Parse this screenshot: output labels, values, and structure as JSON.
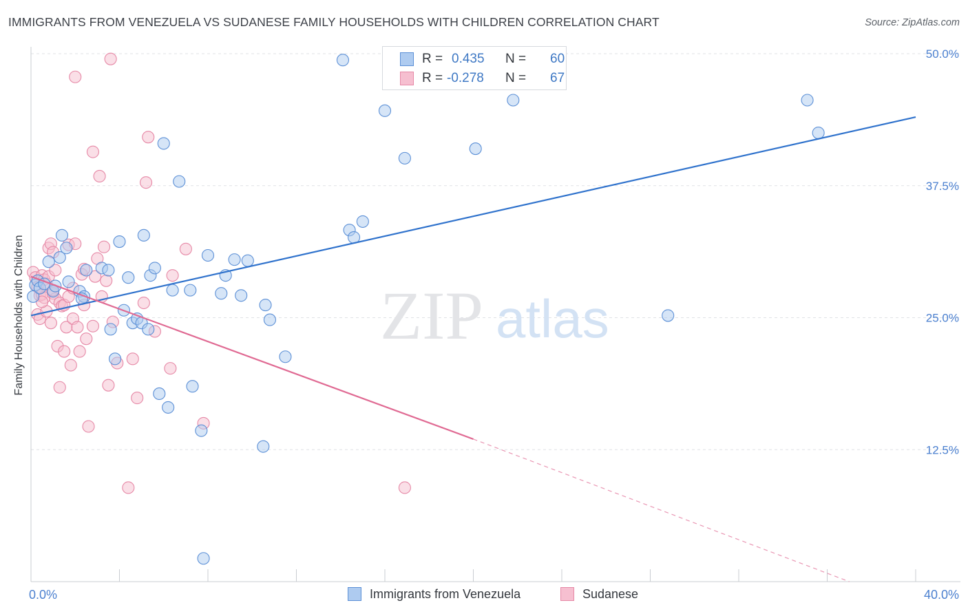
{
  "header": {
    "title": "IMMIGRANTS FROM VENEZUELA VS SUDANESE FAMILY HOUSEHOLDS WITH CHILDREN CORRELATION CHART",
    "source": "Source: ZipAtlas.com"
  },
  "watermark": {
    "zip": "ZIP",
    "atlas": "atlas"
  },
  "legend": {
    "series": [
      {
        "r_label": "R =",
        "r_value": "0.435",
        "n_label": "N =",
        "n_value": "60"
      },
      {
        "r_label": "R =",
        "r_value": "-0.278",
        "n_label": "N =",
        "n_value": "67"
      }
    ]
  },
  "bottom_legend": [
    "Immigrants from Venezuela",
    "Sudanese"
  ],
  "colors": {
    "blue_fill": "#aecbf0",
    "blue_stroke": "#5b8fd6",
    "blue_line": "#2f72cc",
    "pink_fill": "#f6bfd0",
    "pink_stroke": "#e688a6",
    "pink_line": "#e06a93",
    "grid": "#dfe1e5",
    "tick_label": "#4a7fcf"
  },
  "chart_data": {
    "type": "scatter",
    "title": "IMMIGRANTS FROM VENEZUELA VS SUDANESE FAMILY HOUSEHOLDS WITH CHILDREN CORRELATION CHART",
    "xlabel": "",
    "ylabel": "Family Households with Children",
    "xlim": [
      0,
      40
    ],
    "ylim": [
      0,
      50
    ],
    "x_tick_labels": [
      "0.0%",
      "40.0%"
    ],
    "y_ticks": [
      12.5,
      25.0,
      37.5,
      50.0
    ],
    "y_tick_labels": [
      "12.5%",
      "25.0%",
      "37.5%",
      "50.0%"
    ],
    "grid": true,
    "legend_position": "top-center",
    "series": [
      {
        "name": "Immigrants from Venezuela",
        "r": 0.435,
        "n": 60,
        "trend": {
          "x0": 0.0,
          "y0": 25.2,
          "x1": 40.0,
          "y1": 44.0
        },
        "points": [
          [
            0.1,
            27.0
          ],
          [
            0.2,
            28.1
          ],
          [
            0.3,
            28.5
          ],
          [
            0.4,
            27.8
          ],
          [
            0.6,
            28.2
          ],
          [
            0.8,
            30.3
          ],
          [
            1.0,
            27.5
          ],
          [
            1.1,
            28.0
          ],
          [
            1.3,
            30.7
          ],
          [
            1.6,
            31.6
          ],
          [
            1.4,
            32.8
          ],
          [
            1.7,
            28.4
          ],
          [
            2.2,
            27.5
          ],
          [
            2.4,
            27.0
          ],
          [
            2.3,
            26.8
          ],
          [
            2.5,
            29.5
          ],
          [
            3.2,
            29.7
          ],
          [
            3.5,
            29.5
          ],
          [
            3.6,
            23.9
          ],
          [
            3.8,
            21.1
          ],
          [
            4.0,
            32.2
          ],
          [
            4.2,
            25.7
          ],
          [
            4.4,
            28.8
          ],
          [
            4.6,
            24.5
          ],
          [
            4.8,
            24.9
          ],
          [
            5.0,
            24.5
          ],
          [
            5.1,
            32.8
          ],
          [
            5.3,
            23.9
          ],
          [
            5.4,
            29.0
          ],
          [
            5.6,
            29.7
          ],
          [
            5.8,
            17.8
          ],
          [
            6.0,
            41.5
          ],
          [
            6.2,
            16.5
          ],
          [
            6.4,
            27.6
          ],
          [
            6.7,
            37.9
          ],
          [
            7.2,
            27.6
          ],
          [
            7.3,
            18.5
          ],
          [
            7.7,
            14.3
          ],
          [
            8.0,
            30.9
          ],
          [
            8.6,
            27.3
          ],
          [
            8.8,
            29.0
          ],
          [
            9.2,
            30.5
          ],
          [
            9.5,
            27.1
          ],
          [
            9.8,
            30.4
          ],
          [
            10.5,
            12.8
          ],
          [
            10.6,
            26.2
          ],
          [
            10.8,
            24.8
          ],
          [
            11.5,
            21.3
          ],
          [
            14.1,
            49.4
          ],
          [
            14.4,
            33.3
          ],
          [
            14.6,
            32.6
          ],
          [
            15.0,
            34.1
          ],
          [
            16.0,
            44.6
          ],
          [
            16.9,
            40.1
          ],
          [
            20.1,
            41.0
          ],
          [
            21.8,
            45.6
          ],
          [
            28.8,
            25.2
          ],
          [
            35.1,
            45.6
          ],
          [
            35.6,
            42.5
          ],
          [
            7.8,
            2.2
          ]
        ]
      },
      {
        "name": "Sudanese",
        "r": -0.278,
        "n": 67,
        "trend": {
          "x0": 0.0,
          "y0": 28.9,
          "x1": 20.0,
          "y1": 13.5,
          "dash_x1": 37.0,
          "dash_y1": 0.0
        },
        "points": [
          [
            0.1,
            29.3
          ],
          [
            0.2,
            28.8
          ],
          [
            0.3,
            27.9
          ],
          [
            0.3,
            25.3
          ],
          [
            0.4,
            24.9
          ],
          [
            0.4,
            27.1
          ],
          [
            0.5,
            29.0
          ],
          [
            0.5,
            27.2
          ],
          [
            0.6,
            28.6
          ],
          [
            0.6,
            26.9
          ],
          [
            0.7,
            28.2
          ],
          [
            0.7,
            25.6
          ],
          [
            0.8,
            28.9
          ],
          [
            0.8,
            31.6
          ],
          [
            0.9,
            32.0
          ],
          [
            0.9,
            24.5
          ],
          [
            1.0,
            27.3
          ],
          [
            1.0,
            31.2
          ],
          [
            1.1,
            29.5
          ],
          [
            1.1,
            26.8
          ],
          [
            1.2,
            22.3
          ],
          [
            1.3,
            18.4
          ],
          [
            1.3,
            26.4
          ],
          [
            1.4,
            26.1
          ],
          [
            1.5,
            21.8
          ],
          [
            1.5,
            26.2
          ],
          [
            1.6,
            24.1
          ],
          [
            1.7,
            31.9
          ],
          [
            1.7,
            27.0
          ],
          [
            1.8,
            20.5
          ],
          [
            1.9,
            24.9
          ],
          [
            1.9,
            27.8
          ],
          [
            2.0,
            32.0
          ],
          [
            2.1,
            24.1
          ],
          [
            2.2,
            21.8
          ],
          [
            2.3,
            29.1
          ],
          [
            2.4,
            29.6
          ],
          [
            2.4,
            26.2
          ],
          [
            2.5,
            23.0
          ],
          [
            2.6,
            14.7
          ],
          [
            2.8,
            24.2
          ],
          [
            2.8,
            40.7
          ],
          [
            2.9,
            28.9
          ],
          [
            3.0,
            30.6
          ],
          [
            3.1,
            38.4
          ],
          [
            3.2,
            27.0
          ],
          [
            3.3,
            31.7
          ],
          [
            3.4,
            28.5
          ],
          [
            3.5,
            18.6
          ],
          [
            3.6,
            49.5
          ],
          [
            3.7,
            24.6
          ],
          [
            3.9,
            20.7
          ],
          [
            4.4,
            8.9
          ],
          [
            4.6,
            21.1
          ],
          [
            4.8,
            17.4
          ],
          [
            5.1,
            26.4
          ],
          [
            5.2,
            37.8
          ],
          [
            5.3,
            42.1
          ],
          [
            5.6,
            23.7
          ],
          [
            6.3,
            20.2
          ],
          [
            6.4,
            29.0
          ],
          [
            7.0,
            31.5
          ],
          [
            7.8,
            15.0
          ],
          [
            1.0,
            27.6
          ],
          [
            0.5,
            26.5
          ],
          [
            2.0,
            47.8
          ],
          [
            16.9,
            8.9
          ]
        ]
      }
    ]
  }
}
